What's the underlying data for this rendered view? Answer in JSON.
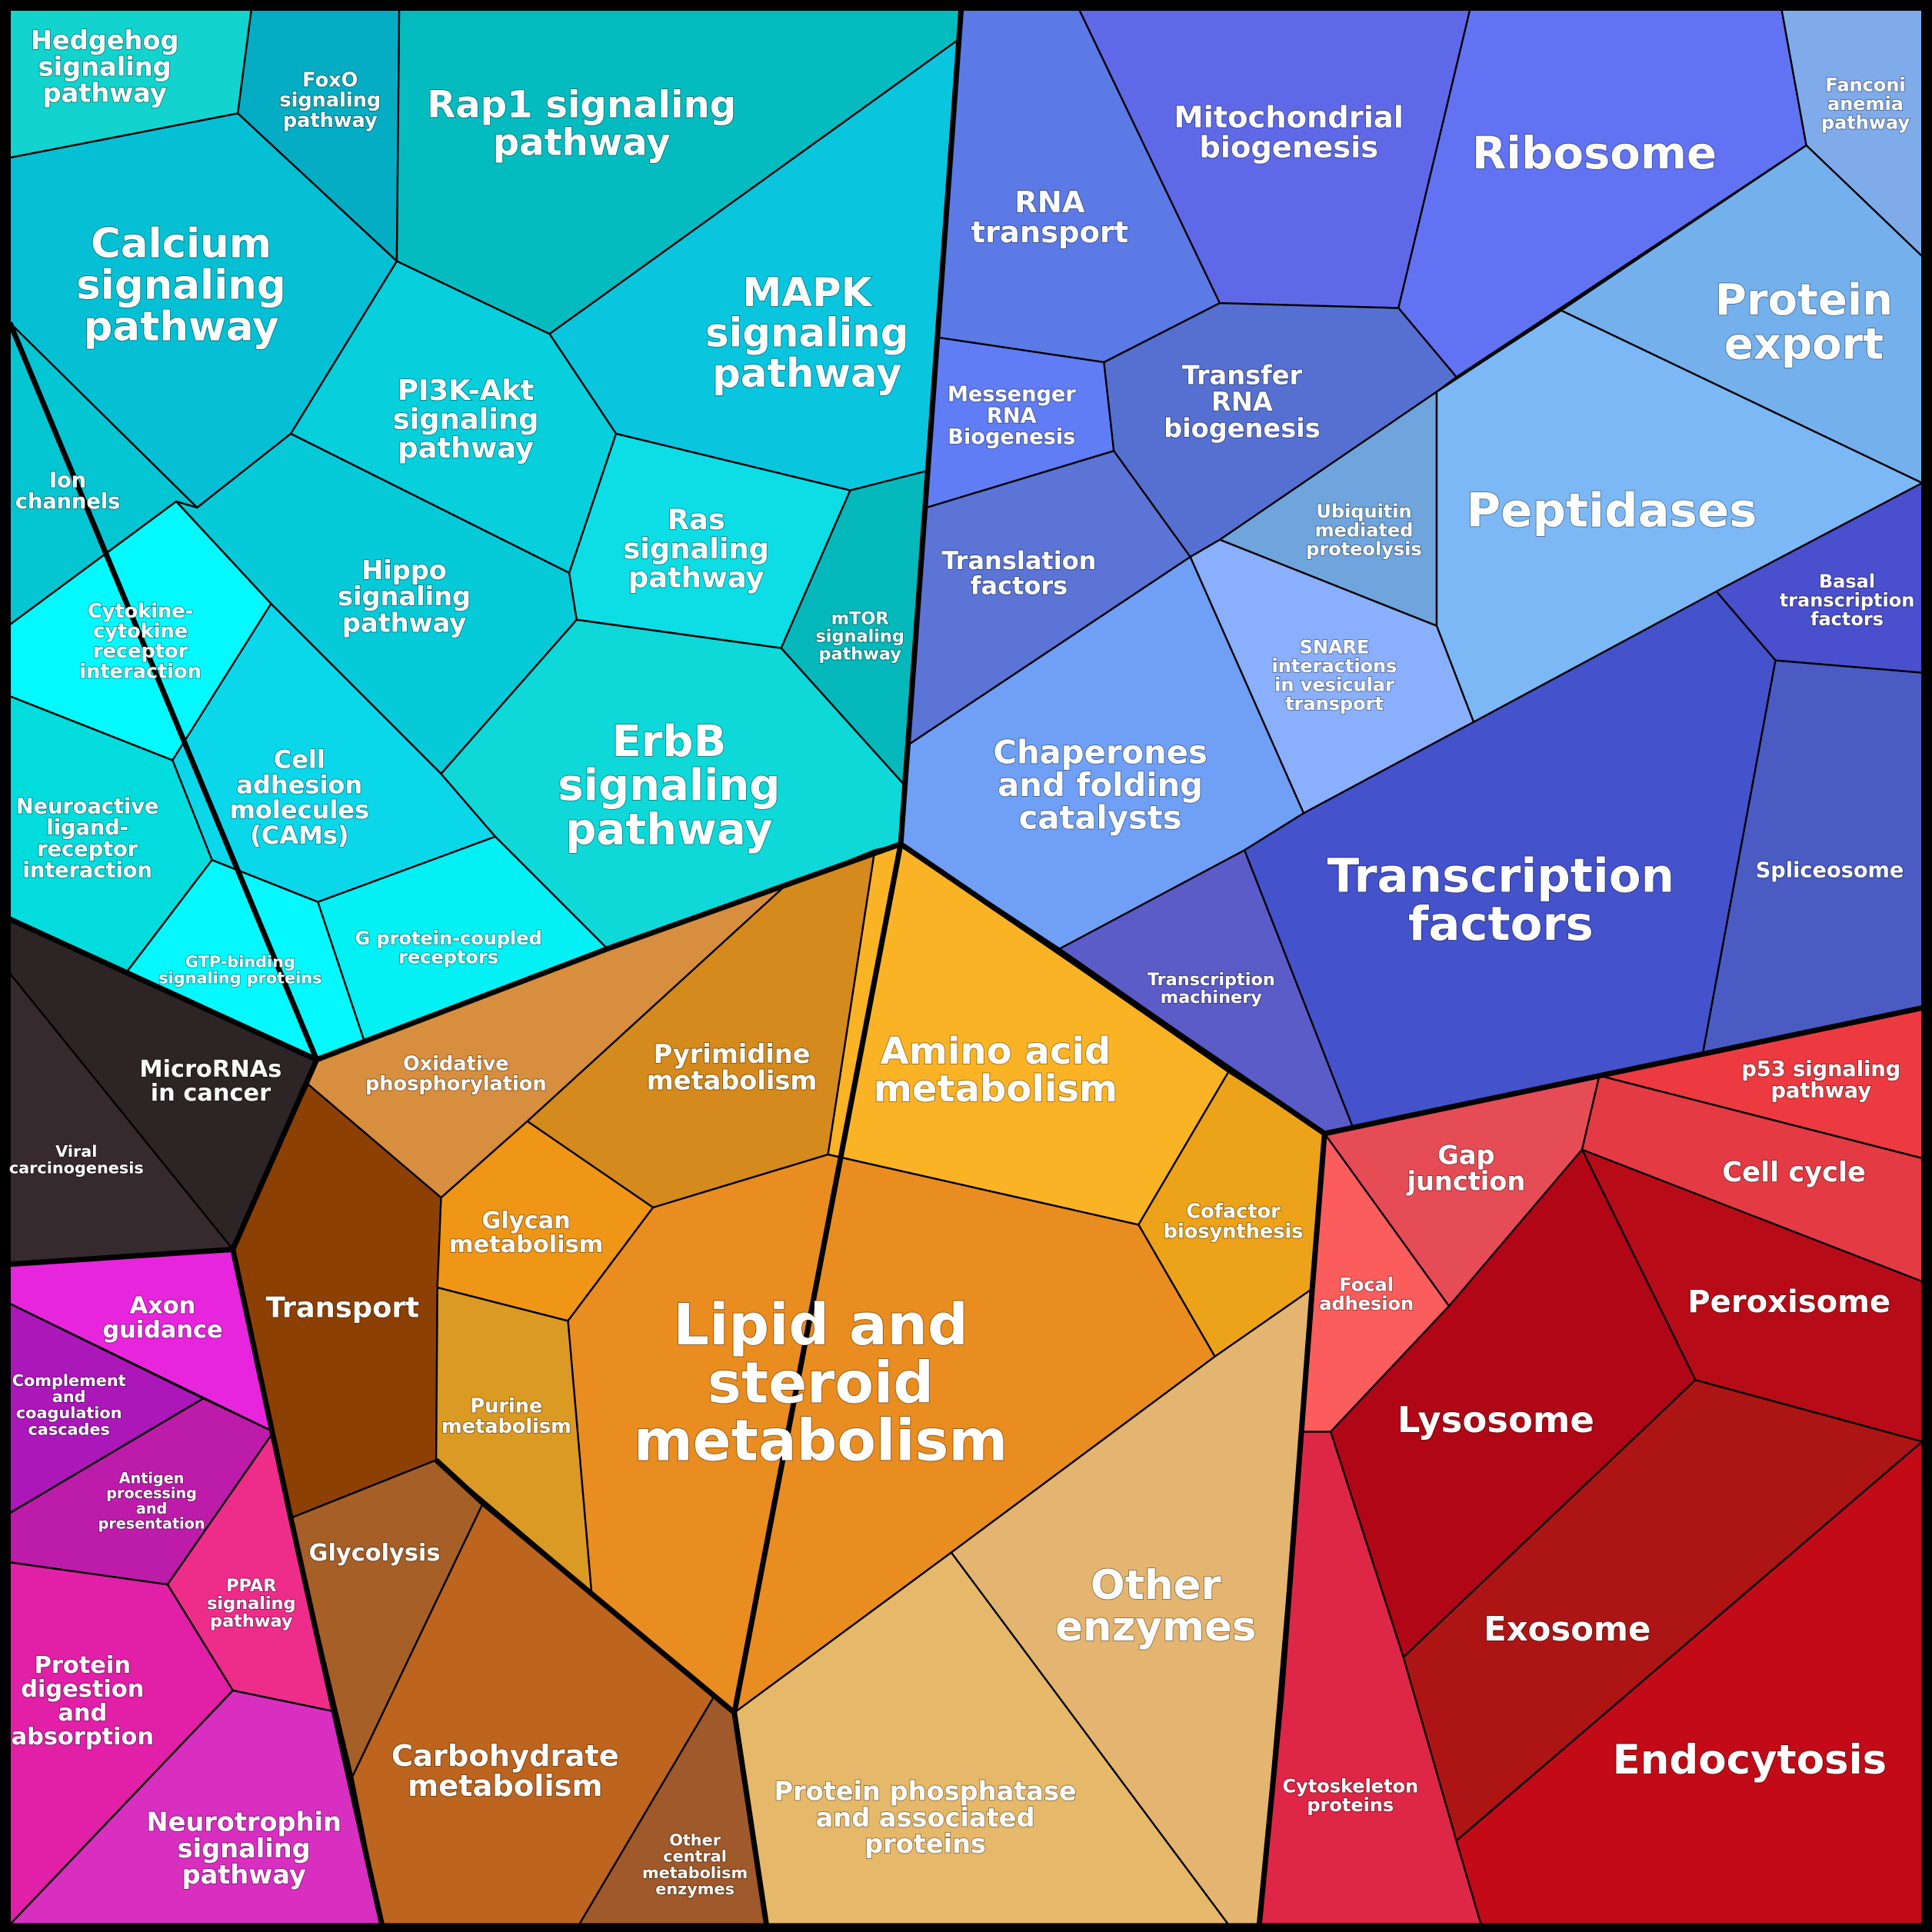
{
  "diagram": {
    "groups": [
      {
        "id": "signaling",
        "color": "#00c8d2"
      },
      {
        "id": "genetic-information",
        "color": "#5a6ae6"
      },
      {
        "id": "metabolism",
        "color": "#f0a020"
      },
      {
        "id": "cellular-processes",
        "color": "#d81428"
      },
      {
        "id": "human-diseases",
        "color": "#2e2628"
      },
      {
        "id": "organismal-systems",
        "color": "#e020c8"
      }
    ],
    "cells": [
      {
        "key": "hedgehog",
        "group": "signaling",
        "color": "#12d3cd",
        "lines": [
          "Hedgehog",
          "signaling",
          "pathway"
        ]
      },
      {
        "key": "foxo",
        "group": "signaling",
        "color": "#04adc3",
        "lines": [
          "FoxO",
          "signaling",
          "pathway"
        ]
      },
      {
        "key": "rap1",
        "group": "signaling",
        "color": "#04bcc0",
        "lines": [
          "Rap1 signaling",
          "pathway"
        ]
      },
      {
        "key": "calcium",
        "group": "signaling",
        "color": "#05c0d4",
        "lines": [
          "Calcium",
          "signaling",
          "pathway"
        ]
      },
      {
        "key": "mapk",
        "group": "signaling",
        "color": "#0ac5de",
        "lines": [
          "MAPK",
          "signaling",
          "pathway"
        ]
      },
      {
        "key": "pi3k",
        "group": "signaling",
        "color": "#07cfdc",
        "lines": [
          "PI3K-Akt",
          "signaling",
          "pathway"
        ]
      },
      {
        "key": "ion-channels",
        "group": "signaling",
        "color": "#04c6d2",
        "lines": [
          "Ion",
          "channels"
        ]
      },
      {
        "key": "hippo",
        "group": "signaling",
        "color": "#06cad8",
        "lines": [
          "Hippo",
          "signaling",
          "pathway"
        ]
      },
      {
        "key": "ras",
        "group": "signaling",
        "color": "#0ddde4",
        "lines": [
          "Ras",
          "signaling",
          "pathway"
        ]
      },
      {
        "key": "mtor",
        "group": "signaling",
        "color": "#04b8bb",
        "lines": [
          "mTOR",
          "signaling",
          "pathway"
        ]
      },
      {
        "key": "cytokine",
        "group": "signaling",
        "color": "#02f9ff",
        "lines": [
          "Cytokine-",
          "cytokine",
          "receptor",
          "interaction"
        ]
      },
      {
        "key": "cams",
        "group": "signaling",
        "color": "#0bd7ea",
        "lines": [
          "Cell",
          "adhesion",
          "molecules",
          "(CAMs)"
        ]
      },
      {
        "key": "erbb",
        "group": "signaling",
        "color": "#0ed8d8",
        "lines": [
          "ErbB",
          "signaling",
          "pathway"
        ]
      },
      {
        "key": "neuroactive",
        "group": "signaling",
        "color": "#03dcdc",
        "lines": [
          "Neuroactive",
          "ligand-",
          "receptor",
          "interaction"
        ]
      },
      {
        "key": "gtp-binding",
        "group": "signaling",
        "color": "#04f8ff",
        "lines": [
          "GTP-binding",
          "signaling proteins"
        ]
      },
      {
        "key": "gpcr",
        "group": "signaling",
        "color": "#03f0f5",
        "lines": [
          "G protein-coupled",
          "receptors"
        ]
      },
      {
        "key": "rna-transport",
        "group": "genetic-information",
        "color": "#5b7ae5",
        "lines": [
          "RNA",
          "transport"
        ]
      },
      {
        "key": "mito-biogenesis",
        "group": "genetic-information",
        "color": "#5f69e8",
        "lines": [
          "Mitochondrial",
          "biogenesis"
        ]
      },
      {
        "key": "ribosome",
        "group": "genetic-information",
        "color": "#6173f2",
        "lines": [
          "Ribosome"
        ]
      },
      {
        "key": "fanconi",
        "group": "genetic-information",
        "color": "#80abea",
        "lines": [
          "Fanconi",
          "anemia",
          "pathway"
        ]
      },
      {
        "key": "protein-export",
        "group": "genetic-information",
        "color": "#74b0ec",
        "lines": [
          "Protein",
          "export"
        ]
      },
      {
        "key": "mrna-biogenesis",
        "group": "genetic-information",
        "color": "#617df5",
        "lines": [
          "Messenger",
          "RNA",
          "Biogenesis"
        ]
      },
      {
        "key": "trna-biogenesis",
        "group": "genetic-information",
        "color": "#5670d2",
        "lines": [
          "Transfer",
          "RNA",
          "biogenesis"
        ]
      },
      {
        "key": "translation-factors",
        "group": "genetic-information",
        "color": "#5b74d6",
        "lines": [
          "Translation",
          "factors"
        ]
      },
      {
        "key": "ubiquitin",
        "group": "genetic-information",
        "color": "#6fa5dc",
        "lines": [
          "Ubiquitin",
          "mediated",
          "proteolysis"
        ]
      },
      {
        "key": "peptidases",
        "group": "genetic-information",
        "color": "#7cb8f5",
        "lines": [
          "Peptidases"
        ]
      },
      {
        "key": "snare",
        "group": "genetic-information",
        "color": "#8aaffc",
        "lines": [
          "SNARE",
          "interactions",
          "in vesicular",
          "transport"
        ]
      },
      {
        "key": "chaperones",
        "group": "genetic-information",
        "color": "#6fa0f6",
        "lines": [
          "Chaperones",
          "and folding",
          "catalysts"
        ]
      },
      {
        "key": "basal-tf",
        "group": "genetic-information",
        "color": "#4a4fcd",
        "lines": [
          "Basal",
          "transcription",
          "factors"
        ]
      },
      {
        "key": "transcription-factors",
        "group": "genetic-information",
        "color": "#4452cc",
        "lines": [
          "Transcription",
          "factors"
        ]
      },
      {
        "key": "spliceosome",
        "group": "genetic-information",
        "color": "#4a5bc4",
        "lines": [
          "Spliceosome"
        ]
      },
      {
        "key": "transcription-machinery",
        "group": "genetic-information",
        "color": "#5b5cc8",
        "lines": [
          "Transcription",
          "machinery"
        ]
      },
      {
        "key": "oxphos",
        "group": "metabolism",
        "color": "#d78e3f",
        "lines": [
          "Oxidative",
          "phosphorylation"
        ]
      },
      {
        "key": "pyrimidine",
        "group": "metabolism",
        "color": "#d48a1c",
        "lines": [
          "Pyrimidine",
          "metabolism"
        ]
      },
      {
        "key": "amino-acid",
        "group": "metabolism",
        "color": "#fbb326",
        "lines": [
          "Amino acid",
          "metabolism"
        ]
      },
      {
        "key": "transport",
        "group": "metabolism",
        "color": "#8d4003",
        "lines": [
          "Transport"
        ]
      },
      {
        "key": "glycan",
        "group": "metabolism",
        "color": "#ef9617",
        "lines": [
          "Glycan",
          "metabolism"
        ]
      },
      {
        "key": "cofactor",
        "group": "metabolism",
        "color": "#eca31a",
        "lines": [
          "Cofactor",
          "biosynthesis"
        ]
      },
      {
        "key": "lipid",
        "group": "metabolism",
        "color": "#e98d21",
        "lines": [
          "Lipid and",
          "steroid",
          "metabolism"
        ]
      },
      {
        "key": "purine",
        "group": "metabolism",
        "color": "#db9a23",
        "lines": [
          "Purine",
          "metabolism"
        ]
      },
      {
        "key": "glycolysis",
        "group": "metabolism",
        "color": "#a65f27",
        "lines": [
          "Glycolysis"
        ]
      },
      {
        "key": "other-enzymes",
        "group": "metabolism",
        "color": "#e4b570",
        "lines": [
          "Other",
          "enzymes"
        ]
      },
      {
        "key": "carbohydrate",
        "group": "metabolism",
        "color": "#bd641e",
        "lines": [
          "Carbohydrate",
          "metabolism"
        ]
      },
      {
        "key": "other-central",
        "group": "metabolism",
        "color": "#a0592a",
        "lines": [
          "Other",
          "central",
          "metabolism",
          "enzymes"
        ]
      },
      {
        "key": "phosphatase",
        "group": "metabolism",
        "color": "#e6b86a",
        "lines": [
          "Protein phosphatase",
          "and associated",
          "proteins"
        ]
      },
      {
        "key": "p53",
        "group": "cellular-processes",
        "color": "#ec3a40",
        "lines": [
          "p53 signaling",
          "pathway"
        ]
      },
      {
        "key": "gap-junction",
        "group": "cellular-processes",
        "color": "#e64c56",
        "lines": [
          "Gap",
          "junction"
        ]
      },
      {
        "key": "cell-cycle",
        "group": "cellular-processes",
        "color": "#e43a44",
        "lines": [
          "Cell cycle"
        ]
      },
      {
        "key": "focal-adhesion",
        "group": "cellular-processes",
        "color": "#fb5d5c",
        "lines": [
          "Focal",
          "adhesion"
        ]
      },
      {
        "key": "peroxisome",
        "group": "cellular-processes",
        "color": "#b70c17",
        "lines": [
          "Peroxisome"
        ]
      },
      {
        "key": "lysosome",
        "group": "cellular-processes",
        "color": "#b00616",
        "lines": [
          "Lysosome"
        ]
      },
      {
        "key": "exosome",
        "group": "cellular-processes",
        "color": "#ad1515",
        "lines": [
          "Exosome"
        ]
      },
      {
        "key": "cytoskeleton",
        "group": "cellular-processes",
        "color": "#de2646",
        "lines": [
          "Cytoskeleton",
          "proteins"
        ]
      },
      {
        "key": "endocytosis",
        "group": "cellular-processes",
        "color": "#c30a17",
        "lines": [
          "Endocytosis"
        ]
      },
      {
        "key": "viral-carcinogenesis",
        "group": "human-diseases",
        "color": "#372a2e",
        "lines": [
          "Viral",
          "carcinogenesis"
        ]
      },
      {
        "key": "micrornas",
        "group": "human-diseases",
        "color": "#2d2426",
        "lines": [
          "MicroRNAs",
          "in cancer"
        ]
      },
      {
        "key": "axon-guidance",
        "group": "organismal-systems",
        "color": "#e725dc",
        "lines": [
          "Axon",
          "guidance"
        ]
      },
      {
        "key": "complement",
        "group": "organismal-systems",
        "color": "#ab17b9",
        "lines": [
          "Complement",
          "and",
          "coagulation",
          "cascades"
        ]
      },
      {
        "key": "antigen",
        "group": "organismal-systems",
        "color": "#bd1caa",
        "lines": [
          "Antigen",
          "processing",
          "and",
          "presentation"
        ]
      },
      {
        "key": "ppar",
        "group": "organismal-systems",
        "color": "#ee2d8b",
        "lines": [
          "PPAR",
          "signaling",
          "pathway"
        ]
      },
      {
        "key": "protein-digestion",
        "group": "organismal-systems",
        "color": "#e21fa7",
        "lines": [
          "Protein",
          "digestion",
          "and",
          "absorption"
        ]
      },
      {
        "key": "neurotrophin",
        "group": "organismal-systems",
        "color": "#d82fc0",
        "lines": [
          "Neurotrophin",
          "signaling",
          "pathway"
        ]
      }
    ]
  }
}
